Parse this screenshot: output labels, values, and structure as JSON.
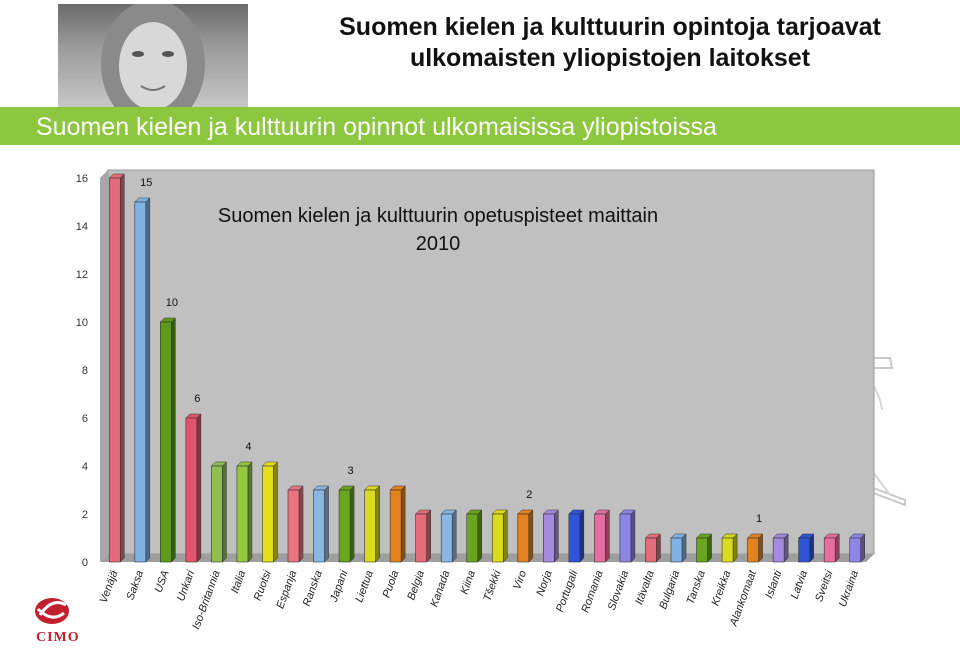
{
  "header": {
    "title_line1": "Suomen kielen ja kulttuurin opintoja tarjoavat",
    "title_line2": "ulkomaisten yliopistojen laitokset"
  },
  "banner": {
    "text": "Suomen kielen ja kulttuurin opinnot ulkomaisissa yliopistoissa"
  },
  "logo": {
    "text": "CIMO",
    "color": "#c21f2e"
  },
  "colors": {
    "banner": "#8dc63f"
  },
  "chart_data": {
    "type": "bar",
    "title_line1": "Suomen kielen ja kulttuurin opetuspisteet maittain",
    "title_line2": "2010",
    "ylim": [
      0,
      16
    ],
    "yticks": [
      0,
      2,
      4,
      6,
      8,
      10,
      12,
      14,
      16
    ],
    "grid": false,
    "categories": [
      "Venäjä",
      "Saksa",
      "USA",
      "Unkari",
      "Iso-Britannia",
      "Italia",
      "Ruotsi",
      "Espanja",
      "Ranska",
      "Japani",
      "Liettua",
      "Puola",
      "Belgia",
      "Kanada",
      "Kiina",
      "Tšekki",
      "Viro",
      "Norja",
      "Portugali",
      "Romania",
      "Slovakia",
      "Itävalta",
      "Bulgaria",
      "Tanska",
      "Kreikka",
      "Alankomaat",
      "Islanti",
      "Latvia",
      "Sveitsi",
      "Ukraina"
    ],
    "values": [
      16,
      15,
      10,
      6,
      4,
      4,
      4,
      3,
      3,
      3,
      3,
      3,
      2,
      2,
      2,
      2,
      2,
      2,
      2,
      2,
      2,
      1,
      1,
      1,
      1,
      1,
      1,
      1,
      1,
      1
    ],
    "bar_colors": [
      "#e46c7a",
      "#7fb2e5",
      "#5f9a1f",
      "#e0556a",
      "#8fbf4f",
      "#92c93f",
      "#e3e01a",
      "#e8757f",
      "#8ab6e6",
      "#6aa51f",
      "#d9db1c",
      "#e3821f",
      "#e46c7a",
      "#8ab6e6",
      "#6aa51f",
      "#d9db1c",
      "#e3821f",
      "#a58ae0",
      "#2e55d6",
      "#e66e9e",
      "#8e86e6",
      "#e46c7a",
      "#7fb2e5",
      "#6aa51f",
      "#d9db1c",
      "#e3821f",
      "#a58ae0",
      "#2e55d6",
      "#e66e9e",
      "#8e86e6"
    ],
    "data_labels": [
      {
        "index": 1,
        "text": "15"
      },
      {
        "index": 2,
        "text": "10"
      },
      {
        "index": 3,
        "text": "6"
      },
      {
        "index": 5,
        "text": "4"
      },
      {
        "index": 9,
        "text": "3"
      },
      {
        "index": 16,
        "text": "2"
      },
      {
        "index": 25,
        "text": "1"
      }
    ]
  }
}
